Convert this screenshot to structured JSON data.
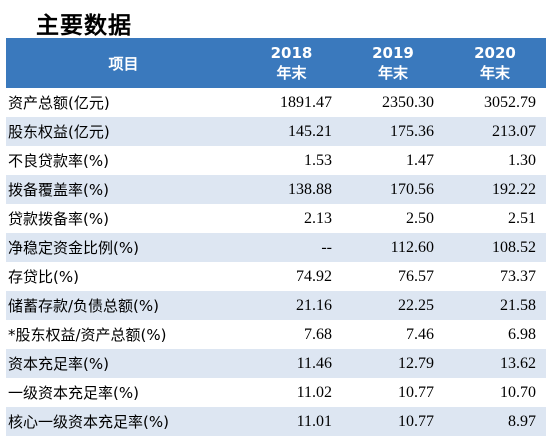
{
  "title": "主要数据",
  "table": {
    "header": {
      "item": "项目",
      "years": [
        {
          "year": "2018",
          "suffix": "年末"
        },
        {
          "year": "2019",
          "suffix": "年末"
        },
        {
          "year": "2020",
          "suffix": "年末"
        }
      ]
    },
    "rows": [
      {
        "label": "资产总额(亿元)",
        "values": [
          "1891.47",
          "2350.30",
          "3052.79"
        ]
      },
      {
        "label": "股东权益(亿元)",
        "values": [
          "145.21",
          "175.36",
          "213.07"
        ]
      },
      {
        "label": "不良贷款率(%)",
        "values": [
          "1.53",
          "1.47",
          "1.30"
        ]
      },
      {
        "label": "拨备覆盖率(%)",
        "values": [
          "138.88",
          "170.56",
          "192.22"
        ]
      },
      {
        "label": "贷款拨备率(%)",
        "values": [
          "2.13",
          "2.50",
          "2.51"
        ]
      },
      {
        "label": "净稳定资金比例(%)",
        "values": [
          "--",
          "112.60",
          "108.52"
        ]
      },
      {
        "label": "存贷比(%)",
        "values": [
          "74.92",
          "76.57",
          "73.37"
        ]
      },
      {
        "label": "储蓄存款/负债总额(%)",
        "values": [
          "21.16",
          "22.25",
          "21.58"
        ]
      },
      {
        "label": "*股东权益/资产总额(%)",
        "values": [
          "7.68",
          "7.46",
          "6.98"
        ]
      },
      {
        "label": "资本充足率(%)",
        "values": [
          "11.46",
          "12.79",
          "13.62"
        ]
      },
      {
        "label": "一级资本充足率(%)",
        "values": [
          "11.02",
          "10.77",
          "10.70"
        ]
      },
      {
        "label": "核心一级资本充足率(%)",
        "values": [
          "11.01",
          "10.77",
          "8.97"
        ]
      }
    ]
  }
}
